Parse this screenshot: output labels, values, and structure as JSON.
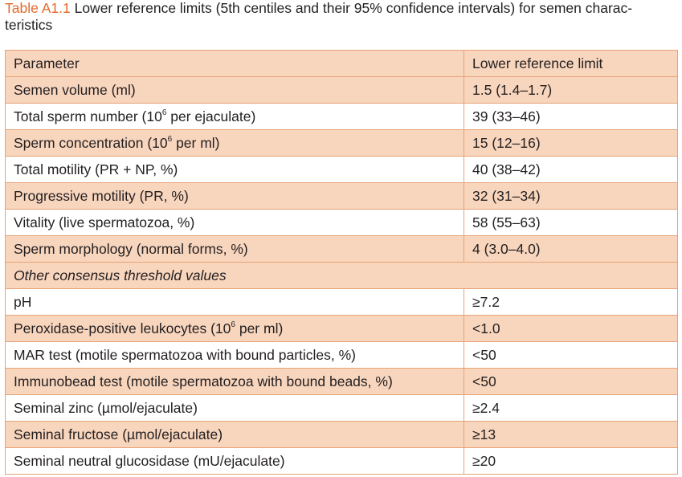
{
  "caption": {
    "label": "Table A1.1",
    "text_line1": " Lower reference limits (5th centiles and their 95% confidence intervals) for semen charac-",
    "text_line2": "teristics"
  },
  "table": {
    "headers": [
      "Parameter",
      "Lower reference limit"
    ],
    "rows": [
      {
        "pre": "Semen volume (ml)",
        "sup": "",
        "post": "",
        "value": "1.5 (1.4–1.7)"
      },
      {
        "pre": "Total sperm number (10",
        "sup": "6",
        "post": " per ejaculate)",
        "value": "39 (33–46)"
      },
      {
        "pre": "Sperm concentration (10",
        "sup": "6",
        "post": " per ml)",
        "value": "15 (12–16)"
      },
      {
        "pre": "Total motility (PR + NP, %)",
        "sup": "",
        "post": "",
        "value": "40 (38–42)"
      },
      {
        "pre": "Progressive motility (PR, %)",
        "sup": "",
        "post": "",
        "value": "32 (31–34)"
      },
      {
        "pre": "Vitality (live spermatozoa, %)",
        "sup": "",
        "post": "",
        "value": "58 (55–63)"
      },
      {
        "pre": "Sperm morphology (normal forms, %)",
        "sup": "",
        "post": "",
        "value": "4 (3.0–4.0)"
      }
    ],
    "section_label": "Other consensus threshold values",
    "threshold_rows": [
      {
        "pre": "pH",
        "sup": "",
        "post": "",
        "value": "≥7.2"
      },
      {
        "pre": "Peroxidase-positive leukocytes (10",
        "sup": "6",
        "post": " per ml)",
        "value": "<1.0"
      },
      {
        "pre": "MAR test (motile spermatozoa with bound particles, %)",
        "sup": "",
        "post": "",
        "value": "<50"
      },
      {
        "pre": "Immunobead test (motile spermatozoa with bound beads, %)",
        "sup": "",
        "post": "",
        "value": "<50"
      },
      {
        "pre": "Seminal zinc (µmol/ejaculate)",
        "sup": "",
        "post": "",
        "value": "≥2.4"
      },
      {
        "pre": "Seminal fructose (µmol/ejaculate)",
        "sup": "",
        "post": "",
        "value": "≥13"
      },
      {
        "pre": "Seminal neutral glucosidase (mU/ejaculate)",
        "sup": "",
        "post": "",
        "value": "≥20"
      }
    ]
  }
}
